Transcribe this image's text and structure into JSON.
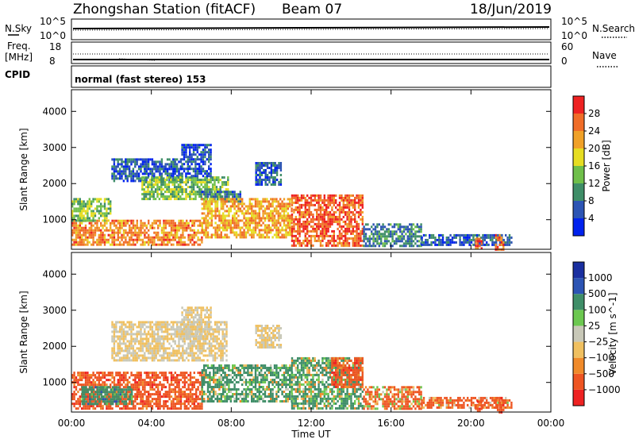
{
  "header": {
    "station": "Zhongshan Station (fitACF)",
    "beam": "Beam 07",
    "date": "18/Jun/2019"
  },
  "panel_labels": {
    "nsky": "N.Sky",
    "nsky_tick_top": "10^5",
    "nsky_tick_bottom": "10^0",
    "nsearch": "N.Search",
    "nsearch_tick_top": "10^5",
    "nsearch_tick_bottom": "10^0",
    "freq_line1": "Freq.",
    "freq_line2": "[MHz]",
    "freq_tick_top": "18",
    "freq_tick_bottom": "8",
    "nave": "Nave",
    "nave_tick_top": "60",
    "nave_tick_bottom": "0",
    "cpid": "CPID",
    "cpid_text": "normal (fast stereo) 153"
  },
  "colors": {
    "power_scale": [
      "#0022ee",
      "#2c54b4",
      "#3f8e68",
      "#6fbf4a",
      "#e6dd22",
      "#f0a128",
      "#f06d28",
      "#ee2222"
    ],
    "velocity_scale": [
      "#ee2222",
      "#ee5522",
      "#f08a2a",
      "#f0c060",
      "#c8c8b8",
      "#6cc850",
      "#3f8e68",
      "#2c54b4",
      "#1a2fa0"
    ]
  },
  "chart_data": [
    {
      "type": "heatmap",
      "name": "power",
      "xlabel": "Time UT",
      "ylabel": "Slant Range [km]",
      "x_ticks": [
        "00:00",
        "04:00",
        "08:00",
        "12:00",
        "16:00",
        "20:00",
        "00:00"
      ],
      "x_range_hours": [
        0,
        24
      ],
      "y_ticks": [
        1000,
        2000,
        3000,
        4000
      ],
      "ylim": [
        180,
        4600
      ],
      "colorbar": {
        "label": "Power [dB]",
        "ticks": [
          4,
          8,
          12,
          16,
          20,
          24,
          28
        ],
        "range": [
          0,
          32
        ]
      },
      "regions": [
        {
          "t": [
            0.0,
            6.5
          ],
          "r": [
            300,
            1000
          ],
          "level": 24
        },
        {
          "t": [
            0.0,
            2.0
          ],
          "r": [
            1000,
            1600
          ],
          "level": 14
        },
        {
          "t": [
            2.0,
            5.5
          ],
          "r": [
            2100,
            2700
          ],
          "level": 6
        },
        {
          "t": [
            3.5,
            7.8
          ],
          "r": [
            1600,
            2200
          ],
          "level": 14
        },
        {
          "t": [
            5.5,
            7.0
          ],
          "r": [
            2200,
            3100
          ],
          "level": 5
        },
        {
          "t": [
            6.5,
            8.5
          ],
          "r": [
            1500,
            1800
          ],
          "level": 8
        },
        {
          "t": [
            6.5,
            11.0
          ],
          "r": [
            500,
            1600
          ],
          "level": 22
        },
        {
          "t": [
            11.0,
            14.6
          ],
          "r": [
            300,
            1700
          ],
          "level": 27
        },
        {
          "t": [
            14.6,
            17.5
          ],
          "r": [
            300,
            900
          ],
          "level": 9
        },
        {
          "t": [
            17.5,
            22.0
          ],
          "r": [
            300,
            600
          ],
          "level": 6
        },
        {
          "t": [
            20.2,
            20.5
          ],
          "r": [
            200,
            500
          ],
          "level": 25
        },
        {
          "t": [
            21.2,
            21.6
          ],
          "r": [
            200,
            600
          ],
          "level": 26
        },
        {
          "t": [
            9.2,
            10.5
          ],
          "r": [
            2000,
            2600
          ],
          "level": 6
        }
      ]
    },
    {
      "type": "heatmap",
      "name": "velocity",
      "xlabel": "Time UT",
      "ylabel": "Slant Range [km]",
      "x_ticks": [
        "00:00",
        "04:00",
        "08:00",
        "12:00",
        "16:00",
        "20:00",
        "00:00"
      ],
      "x_range_hours": [
        0,
        24
      ],
      "y_ticks": [
        1000,
        2000,
        3000,
        4000
      ],
      "ylim": [
        180,
        4600
      ],
      "colorbar": {
        "label": "Velocity [m s^-1]",
        "ticks": [
          "1000",
          "500",
          "100",
          "25",
          "-25",
          "-100",
          "-500",
          "-1000"
        ]
      },
      "regions": [
        {
          "t": [
            0.0,
            6.5
          ],
          "r": [
            300,
            1300
          ],
          "level": -300
        },
        {
          "t": [
            0.5,
            3.0
          ],
          "r": [
            400,
            900
          ],
          "level": 300
        },
        {
          "t": [
            2.0,
            7.8
          ],
          "r": [
            1600,
            2700
          ],
          "level": 0
        },
        {
          "t": [
            5.5,
            7.0
          ],
          "r": [
            2200,
            3100
          ],
          "level": 0
        },
        {
          "t": [
            6.5,
            11.0
          ],
          "r": [
            500,
            1500
          ],
          "level": 200
        },
        {
          "t": [
            11.0,
            14.6
          ],
          "r": [
            300,
            1700
          ],
          "level": 150
        },
        {
          "t": [
            13.0,
            14.6
          ],
          "r": [
            900,
            1700
          ],
          "level": -300
        },
        {
          "t": [
            14.6,
            17.5
          ],
          "r": [
            300,
            900
          ],
          "level": -150
        },
        {
          "t": [
            17.5,
            22.0
          ],
          "r": [
            300,
            600
          ],
          "level": -200
        },
        {
          "t": [
            20.2,
            20.5
          ],
          "r": [
            200,
            500
          ],
          "level": -300
        },
        {
          "t": [
            21.2,
            21.6
          ],
          "r": [
            200,
            600
          ],
          "level": -300
        },
        {
          "t": [
            9.2,
            10.5
          ],
          "r": [
            2000,
            2600
          ],
          "level": 0
        }
      ]
    }
  ]
}
